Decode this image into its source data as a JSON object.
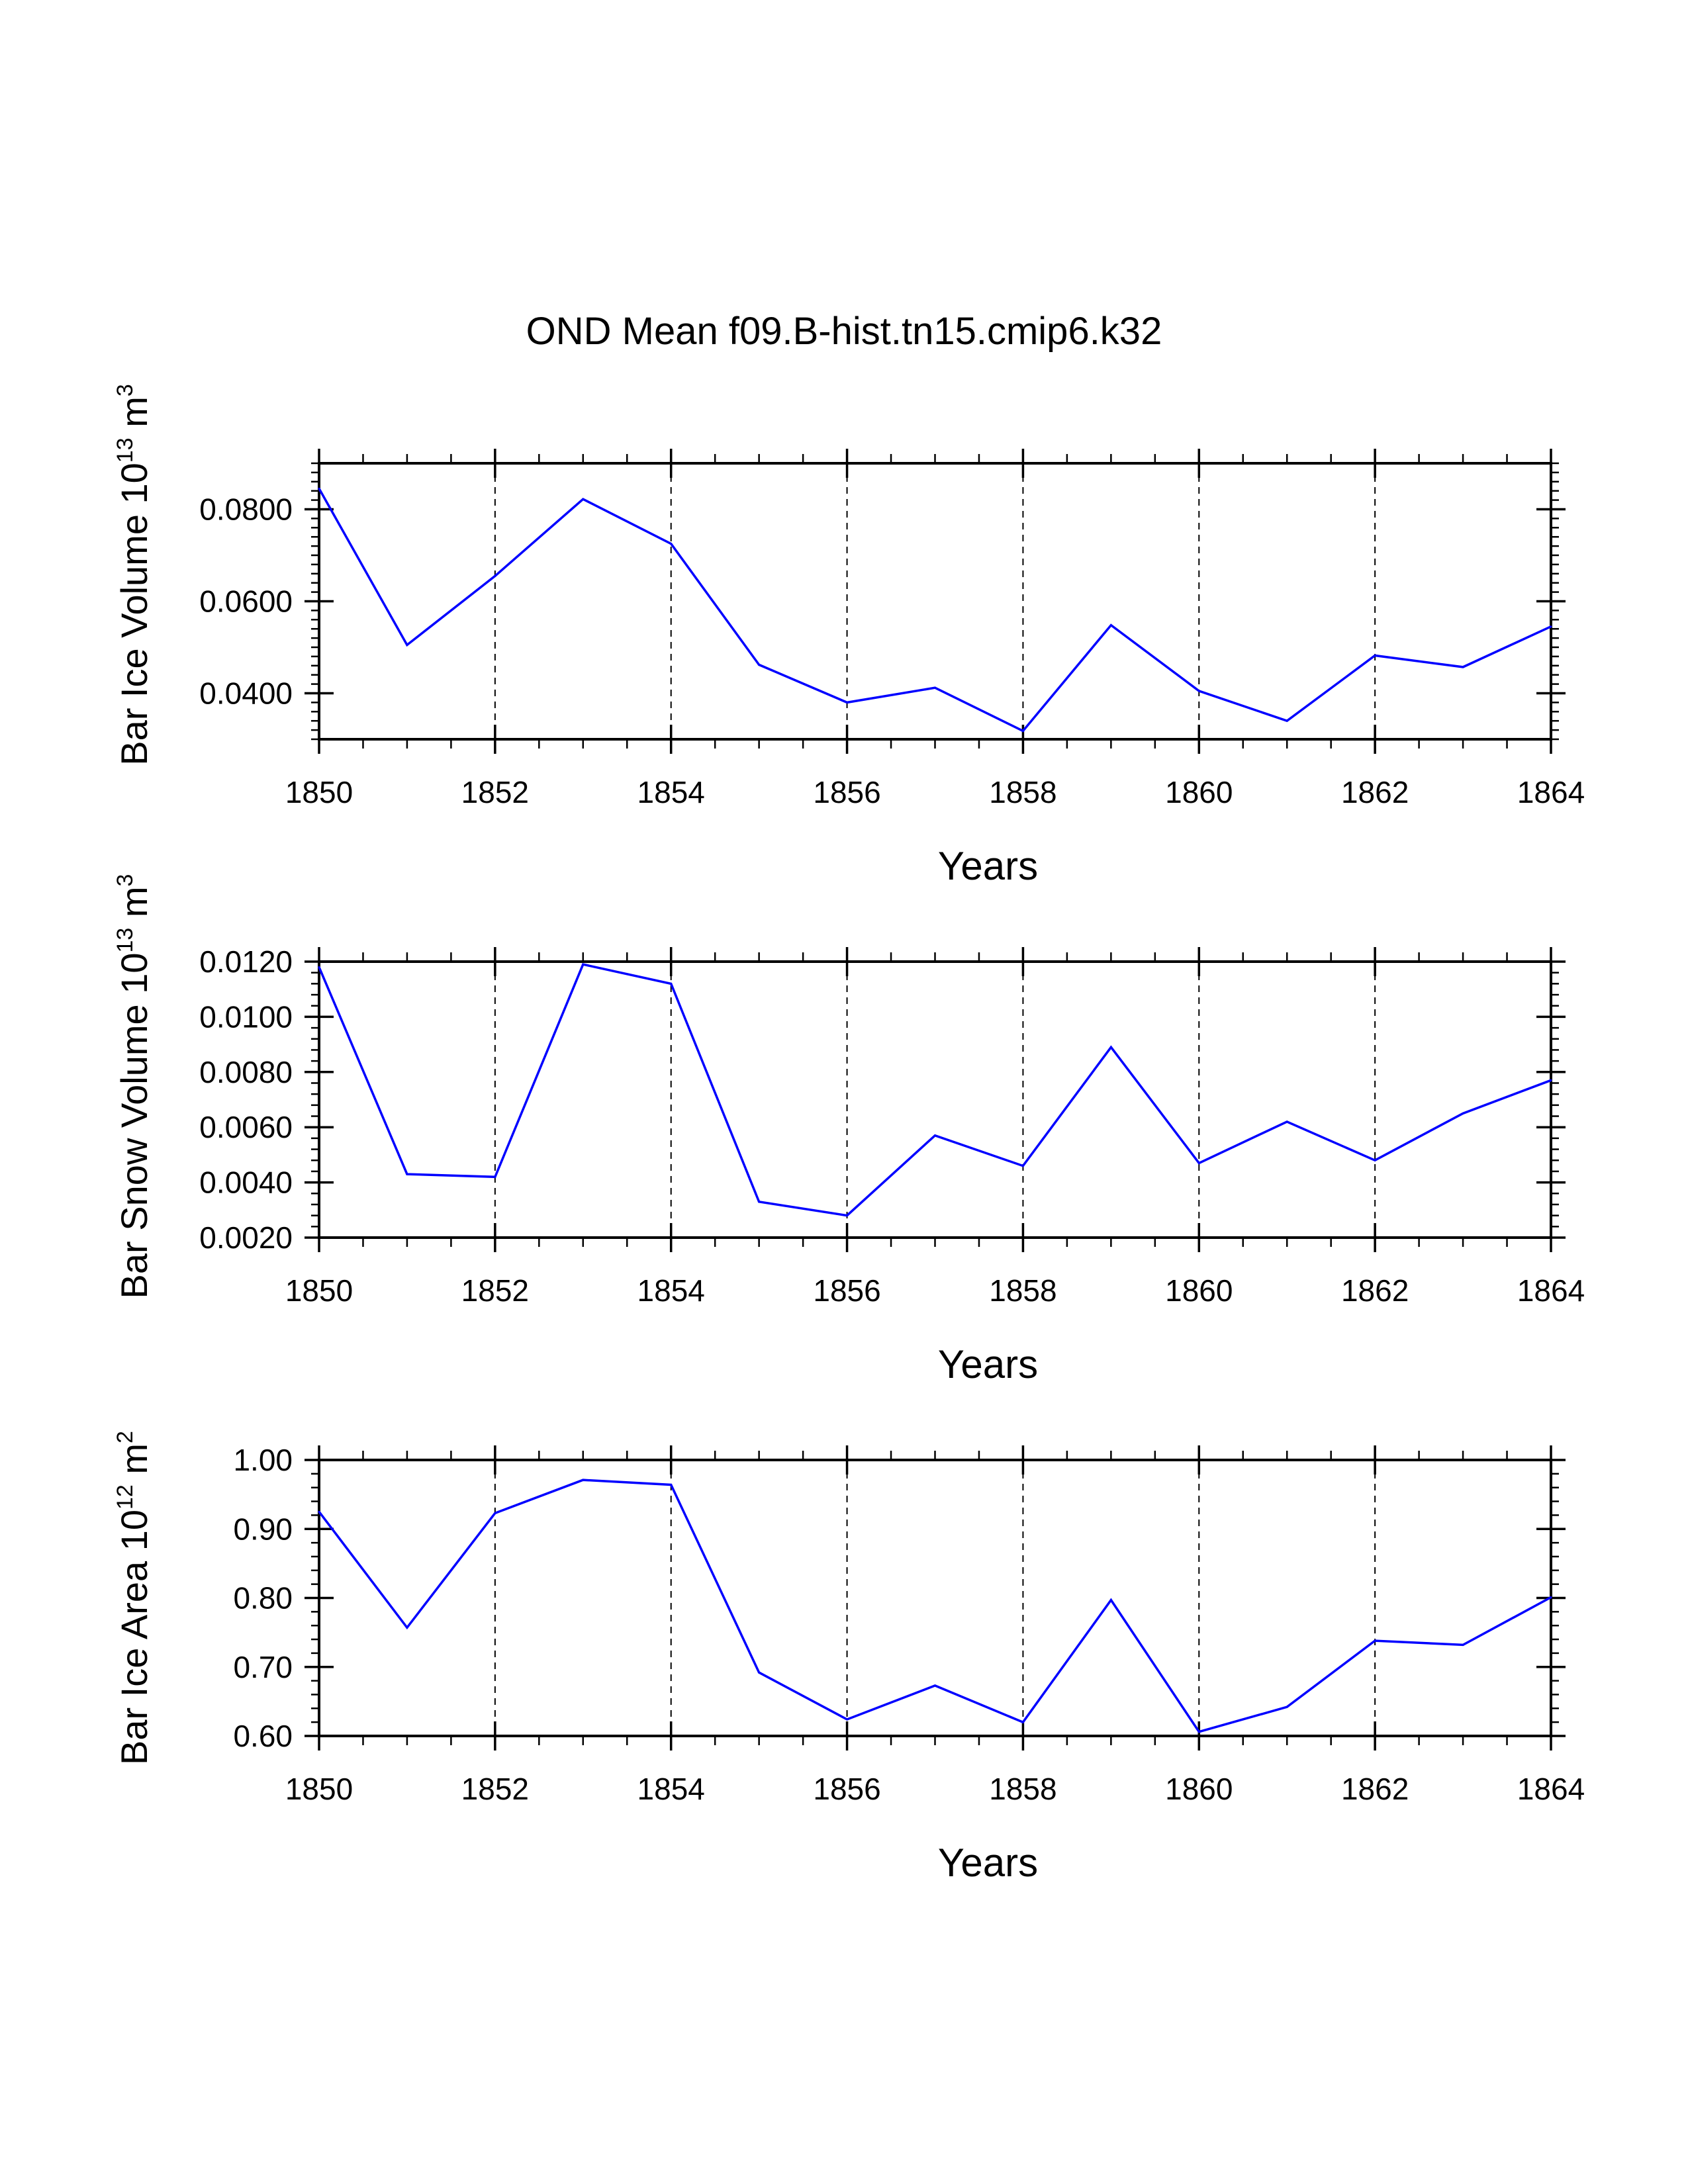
{
  "figure_title": "OND Mean f09.B-hist.tn15.cmip6.k32",
  "colors": {
    "line": "#0000ff",
    "axis": "#000000",
    "grid": "#000000"
  },
  "chart_data": [
    {
      "type": "line",
      "ylabel": {
        "main": "Bar Ice Volume 10",
        "exponent": "13",
        "unit": " m",
        "unit_exponent": "3"
      },
      "xlabel": "Years",
      "x": [
        1850,
        1851,
        1852,
        1853,
        1854,
        1855,
        1856,
        1857,
        1858,
        1859,
        1860,
        1861,
        1862,
        1863,
        1864
      ],
      "series": [
        {
          "name": "Bar Ice Volume",
          "values": [
            0.0845,
            0.0505,
            0.0655,
            0.0822,
            0.0725,
            0.0462,
            0.038,
            0.0412,
            0.0318,
            0.0548,
            0.0405,
            0.034,
            0.0482,
            0.0457,
            0.0545
          ]
        }
      ],
      "xlim": [
        1850,
        1864
      ],
      "ylim": [
        0.03,
        0.09
      ],
      "xticks": [
        "1850",
        "1852",
        "1854",
        "1856",
        "1858",
        "1860",
        "1862",
        "1864"
      ],
      "yticks": [
        "0.0400",
        "0.0600",
        "0.0800"
      ],
      "ytick_values": [
        0.04,
        0.06,
        0.08
      ]
    },
    {
      "type": "line",
      "ylabel": {
        "main": "Bar Snow Volume 10",
        "exponent": "13",
        "unit": " m",
        "unit_exponent": "3"
      },
      "xlabel": "Years",
      "x": [
        1850,
        1851,
        1852,
        1853,
        1854,
        1855,
        1856,
        1857,
        1858,
        1859,
        1860,
        1861,
        1862,
        1863,
        1864
      ],
      "series": [
        {
          "name": "Bar Snow Volume",
          "values": [
            0.0118,
            0.0043,
            0.0042,
            0.0119,
            0.0112,
            0.0033,
            0.0028,
            0.0057,
            0.0046,
            0.0089,
            0.0047,
            0.0062,
            0.0048,
            0.0065,
            0.0077
          ]
        }
      ],
      "xlim": [
        1850,
        1864
      ],
      "ylim": [
        0.002,
        0.012
      ],
      "xticks": [
        "1850",
        "1852",
        "1854",
        "1856",
        "1858",
        "1860",
        "1862",
        "1864"
      ],
      "yticks": [
        "0.0020",
        "0.0040",
        "0.0060",
        "0.0080",
        "0.0100",
        "0.0120"
      ],
      "ytick_values": [
        0.002,
        0.004,
        0.006,
        0.008,
        0.01,
        0.012
      ]
    },
    {
      "type": "line",
      "ylabel": {
        "main": "Bar Ice Area 10",
        "exponent": "12",
        "unit": " m",
        "unit_exponent": "2"
      },
      "xlabel": "Years",
      "x": [
        1850,
        1851,
        1852,
        1853,
        1854,
        1855,
        1856,
        1857,
        1858,
        1859,
        1860,
        1861,
        1862,
        1863,
        1864
      ],
      "series": [
        {
          "name": "Bar Ice Area",
          "values": [
            0.925,
            0.757,
            0.923,
            0.971,
            0.964,
            0.692,
            0.624,
            0.673,
            0.62,
            0.797,
            0.606,
            0.642,
            0.738,
            0.732,
            0.801
          ]
        }
      ],
      "xlim": [
        1850,
        1864
      ],
      "ylim": [
        0.6,
        1.0
      ],
      "xticks": [
        "1850",
        "1852",
        "1854",
        "1856",
        "1858",
        "1860",
        "1862",
        "1864"
      ],
      "yticks": [
        "0.60",
        "0.70",
        "0.80",
        "0.90",
        "1.00"
      ],
      "ytick_values": [
        0.6,
        0.7,
        0.8,
        0.9,
        1.0
      ]
    }
  ]
}
